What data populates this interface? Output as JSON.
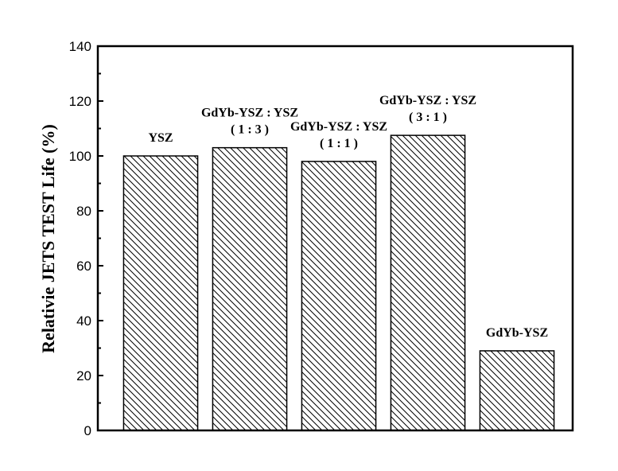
{
  "chart_data": {
    "type": "bar",
    "categories": [
      [
        "YSZ"
      ],
      [
        "GdYb-YSZ : YSZ",
        "( 1 : 3 )"
      ],
      [
        "GdYb-YSZ : YSZ",
        "( 1 : 1 )"
      ],
      [
        "GdYb-YSZ : YSZ",
        "( 3 : 1 )"
      ],
      [
        "GdYb-YSZ"
      ]
    ],
    "values": [
      100,
      103,
      98,
      107.5,
      29
    ],
    "ylabel": "Relativie JETS TEST Life (%)",
    "xlabel": "",
    "ylim": [
      0,
      140
    ],
    "yticks": [
      0,
      20,
      40,
      60,
      80,
      100,
      120,
      140
    ],
    "bar_fill": "diagonal-hatch",
    "bar_color": "#000000",
    "grid": false
  }
}
